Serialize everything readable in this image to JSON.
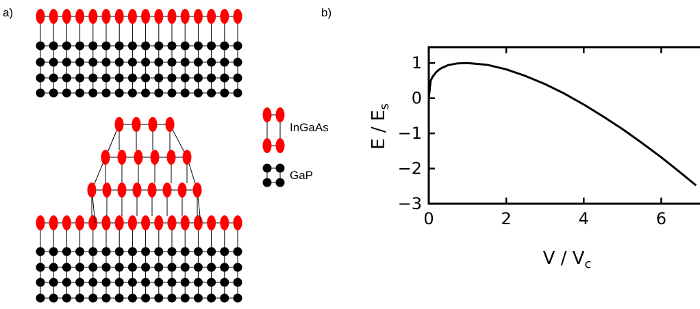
{
  "panel_a": {
    "label": "a)",
    "legend": [
      {
        "text": "InGaAs",
        "color": "#ff0000"
      },
      {
        "text": "GaP",
        "color": "#000000"
      }
    ]
  },
  "panel_b": {
    "label": "b)"
  },
  "chart_data": {
    "type": "line",
    "title": "",
    "ylabel": "E / E",
    "ylabel_sub": "s",
    "xlabel": "V / V",
    "xlabel_sub": "c",
    "xlim": [
      0,
      7
    ],
    "ylim": [
      -3,
      1.45
    ],
    "xticks": [
      0,
      2,
      4,
      6
    ],
    "yticks": [
      1,
      0,
      -1,
      -2,
      -3
    ],
    "ytick_labels": [
      "1",
      "0",
      "−1",
      "−2",
      "−3"
    ],
    "grid": false,
    "series": [
      {
        "x": [
          0,
          0.05,
          0.1,
          0.2,
          0.3,
          0.5,
          0.75,
          1.0,
          1.5,
          2.0,
          2.5,
          3.0,
          3.5,
          4.0,
          4.5,
          5.0,
          5.5,
          6.0,
          6.5,
          6.9
        ],
        "y": [
          0.0,
          0.5,
          0.61,
          0.75,
          0.84,
          0.94,
          0.99,
          1.0,
          0.95,
          0.82,
          0.63,
          0.4,
          0.13,
          -0.18,
          -0.52,
          -0.88,
          -1.27,
          -1.68,
          -2.12,
          -2.48
        ]
      }
    ]
  }
}
